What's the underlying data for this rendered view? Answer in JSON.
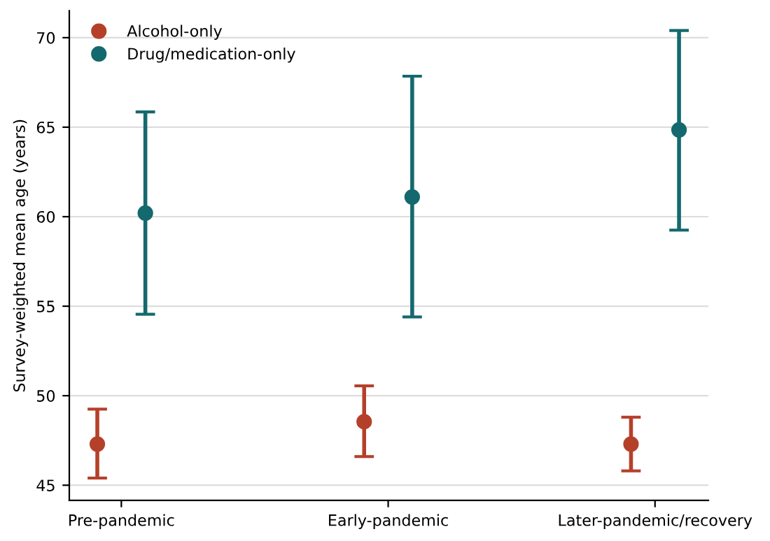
{
  "chart_data": {
    "type": "scatter",
    "ylabel": "Survey-weighted mean age (years)",
    "categories": [
      "Pre-pandemic",
      "Early-pandemic",
      "Later-pandemic/recovery"
    ],
    "series": [
      {
        "name": "Alcohol-only",
        "color": "#b5402a",
        "values": [
          47.3,
          48.55,
          47.3
        ],
        "errors": [
          [
            45.4,
            49.25
          ],
          [
            46.6,
            50.55
          ],
          [
            45.8,
            48.8
          ]
        ]
      },
      {
        "name": "Drug/medication-only",
        "color": "#14696e",
        "values": [
          60.2,
          61.1,
          64.85
        ],
        "errors": [
          [
            54.55,
            65.85
          ],
          [
            54.4,
            67.85
          ],
          [
            59.25,
            70.4
          ]
        ]
      }
    ],
    "ylim": [
      44.15,
      71.5
    ],
    "yticks": [
      45,
      50,
      55,
      60,
      65,
      70
    ],
    "grid": "y",
    "legend": "top left",
    "marker": "circle"
  }
}
